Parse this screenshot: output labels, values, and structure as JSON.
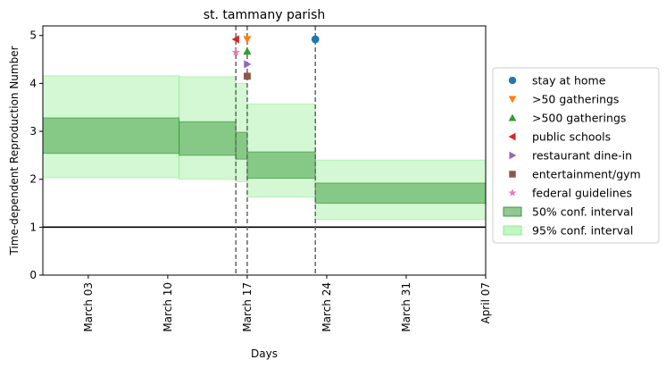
{
  "chart_data": {
    "type": "line",
    "title": "st. tammany parish",
    "xlabel": "Days",
    "ylabel": "Time-dependent Reproduction Number",
    "x_range": [
      "2020-02-28",
      "2020-04-07"
    ],
    "ylim": [
      0,
      5.2
    ],
    "y_ticks": [
      0,
      1,
      2,
      3,
      4,
      5
    ],
    "x_ticks": [
      {
        "date": "2020-03-03",
        "label": "March 03"
      },
      {
        "date": "2020-03-10",
        "label": "March 10"
      },
      {
        "date": "2020-03-17",
        "label": "March 17"
      },
      {
        "date": "2020-03-24",
        "label": "March 24"
      },
      {
        "date": "2020-03-31",
        "label": "March 31"
      },
      {
        "date": "2020-04-07",
        "label": "April 07"
      }
    ],
    "reference_line": {
      "y": 1,
      "color": "#000000"
    },
    "intervals": [
      {
        "start": "2020-02-28",
        "end": "2020-03-11",
        "ci50": [
          2.54,
          3.28
        ],
        "ci95": [
          2.03,
          4.16
        ]
      },
      {
        "start": "2020-03-11",
        "end": "2020-03-16",
        "ci50": [
          2.5,
          3.2
        ],
        "ci95": [
          2.0,
          4.14
        ]
      },
      {
        "start": "2020-03-16",
        "end": "2020-03-17",
        "ci50": [
          2.42,
          2.98
        ],
        "ci95": [
          1.95,
          4.0
        ]
      },
      {
        "start": "2020-03-17",
        "end": "2020-03-23",
        "ci50": [
          2.02,
          2.57
        ],
        "ci95": [
          1.63,
          3.57
        ]
      },
      {
        "start": "2020-03-23",
        "end": "2020-04-07",
        "ci50": [
          1.5,
          1.92
        ],
        "ci95": [
          1.16,
          2.4
        ]
      }
    ],
    "interventions": [
      {
        "name": "stay at home",
        "date": "2020-03-23",
        "y": 4.92,
        "marker": "circle",
        "color": "#1f77b4"
      },
      {
        "name": ">50 gatherings",
        "date": "2020-03-17",
        "y": 4.92,
        "marker": "triangle-down",
        "color": "#ff7f0e"
      },
      {
        "name": ">500 gatherings",
        "date": "2020-03-17",
        "y": 4.67,
        "marker": "triangle-up",
        "color": "#2ca02c"
      },
      {
        "name": "public schools",
        "date": "2020-03-16",
        "y": 4.92,
        "marker": "triangle-left",
        "color": "#d62728"
      },
      {
        "name": "restaurant dine-in",
        "date": "2020-03-17",
        "y": 4.4,
        "marker": "triangle-right",
        "color": "#9467bd"
      },
      {
        "name": "entertainment/gym",
        "date": "2020-03-17",
        "y": 4.15,
        "marker": "square",
        "color": "#8c564b"
      },
      {
        "name": "federal guidelines",
        "date": "2020-03-16",
        "y": 4.65,
        "marker": "star",
        "color": "#e377c2"
      }
    ],
    "vlines": [
      "2020-03-16",
      "2020-03-17",
      "2020-03-23"
    ],
    "legend_position": "right",
    "legend": [
      {
        "label": "stay at home",
        "marker": "circle",
        "color": "#1f77b4"
      },
      {
        "label": ">50 gatherings",
        "marker": "triangle-down",
        "color": "#ff7f0e"
      },
      {
        "label": ">500 gatherings",
        "marker": "triangle-up",
        "color": "#2ca02c"
      },
      {
        "label": "public schools",
        "marker": "triangle-left",
        "color": "#d62728"
      },
      {
        "label": "restaurant dine-in",
        "marker": "triangle-right",
        "color": "#9467bd"
      },
      {
        "label": "entertainment/gym",
        "marker": "square",
        "color": "#8c564b"
      },
      {
        "label": "federal guidelines",
        "marker": "star",
        "color": "#e377c2"
      },
      {
        "label": "50% conf. interval",
        "marker": "patch",
        "color": "#3a9a3a"
      },
      {
        "label": "95% conf. interval",
        "marker": "patch",
        "color": "#90ee90"
      }
    ],
    "colors": {
      "ci50": "#3a9a3a",
      "ci95": "#90ee90",
      "vline": "#666666"
    }
  }
}
